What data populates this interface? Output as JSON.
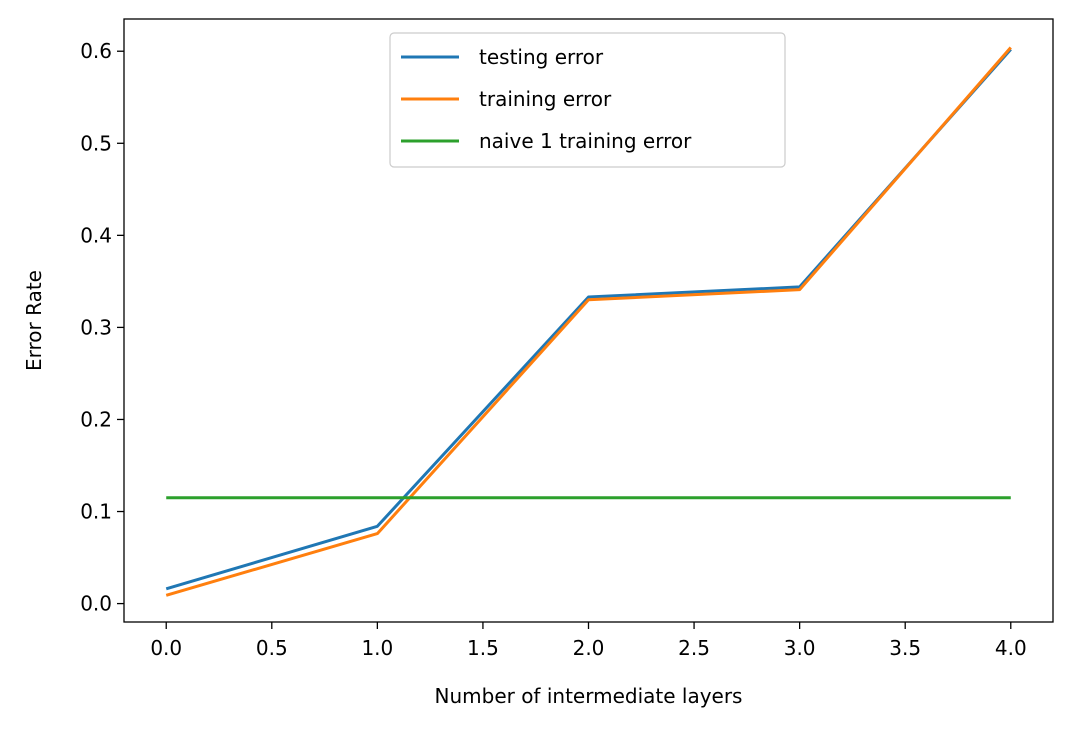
{
  "chart_data": {
    "type": "line",
    "title": "",
    "xlabel": "Number of intermediate layers",
    "ylabel": "Error Rate",
    "x": [
      0,
      1,
      2,
      3,
      4
    ],
    "xlim": [
      -0.2,
      4.2
    ],
    "ylim": [
      -0.02,
      0.635
    ],
    "xticks": [
      0.0,
      0.5,
      1.0,
      1.5,
      2.0,
      2.5,
      3.0,
      3.5,
      4.0
    ],
    "xtick_labels": [
      "0.0",
      "0.5",
      "1.0",
      "1.5",
      "2.0",
      "2.5",
      "3.0",
      "3.5",
      "4.0"
    ],
    "yticks": [
      0.0,
      0.1,
      0.2,
      0.3,
      0.4,
      0.5,
      0.6
    ],
    "ytick_labels": [
      "0.0",
      "0.1",
      "0.2",
      "0.3",
      "0.4",
      "0.5",
      "0.6"
    ],
    "grid": false,
    "legend_position": "top-center",
    "series": [
      {
        "name": "testing error",
        "color": "#1f77b4",
        "values": [
          0.016,
          0.084,
          0.333,
          0.344,
          0.602
        ]
      },
      {
        "name": "training error",
        "color": "#ff7f0e",
        "values": [
          0.009,
          0.076,
          0.33,
          0.341,
          0.604
        ]
      },
      {
        "name": "naive 1 training error",
        "color": "#2ca02c",
        "values": [
          0.115,
          0.115,
          0.115,
          0.115,
          0.115
        ]
      }
    ]
  }
}
